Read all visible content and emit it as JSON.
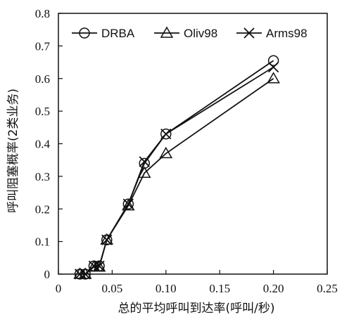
{
  "chart_data": {
    "type": "line",
    "title": "",
    "xlabel": "总的平均呼叫到达率(呼叫/秒)",
    "ylabel": "呼叫阻塞概率(2类业务)",
    "xlim": [
      0,
      0.25
    ],
    "ylim": [
      0,
      0.8
    ],
    "xticks": [
      0,
      0.05,
      0.1,
      0.15,
      0.2,
      0.25
    ],
    "xtick_labels": [
      "0",
      "0.05",
      "0.10",
      "0.15",
      "0.20",
      "0.25"
    ],
    "yticks": [
      0,
      0.1,
      0.2,
      0.3,
      0.4,
      0.5,
      0.6,
      0.7,
      0.8
    ],
    "ytick_labels": [
      "0",
      "0.1",
      "0.2",
      "0.3",
      "0.4",
      "0.5",
      "0.6",
      "0.7",
      "0.8"
    ],
    "grid": false,
    "legend_position": "top",
    "series": [
      {
        "name": "DRBA",
        "marker": "circle",
        "x": [
          0.02,
          0.025,
          0.033,
          0.038,
          0.045,
          0.065,
          0.08,
          0.1,
          0.2
        ],
        "y": [
          0.0,
          0.0,
          0.025,
          0.025,
          0.105,
          0.215,
          0.34,
          0.43,
          0.655
        ]
      },
      {
        "name": "Oliv98",
        "marker": "triangle",
        "x": [
          0.02,
          0.025,
          0.033,
          0.038,
          0.045,
          0.065,
          0.08,
          0.1,
          0.2
        ],
        "y": [
          0.0,
          0.0,
          0.022,
          0.022,
          0.105,
          0.21,
          0.31,
          0.37,
          0.6
        ]
      },
      {
        "name": "Arms98",
        "marker": "x",
        "x": [
          0.02,
          0.025,
          0.033,
          0.038,
          0.045,
          0.065,
          0.08,
          0.1,
          0.2
        ],
        "y": [
          0.0,
          0.0,
          0.025,
          0.025,
          0.105,
          0.215,
          0.345,
          0.43,
          0.635
        ]
      }
    ]
  }
}
